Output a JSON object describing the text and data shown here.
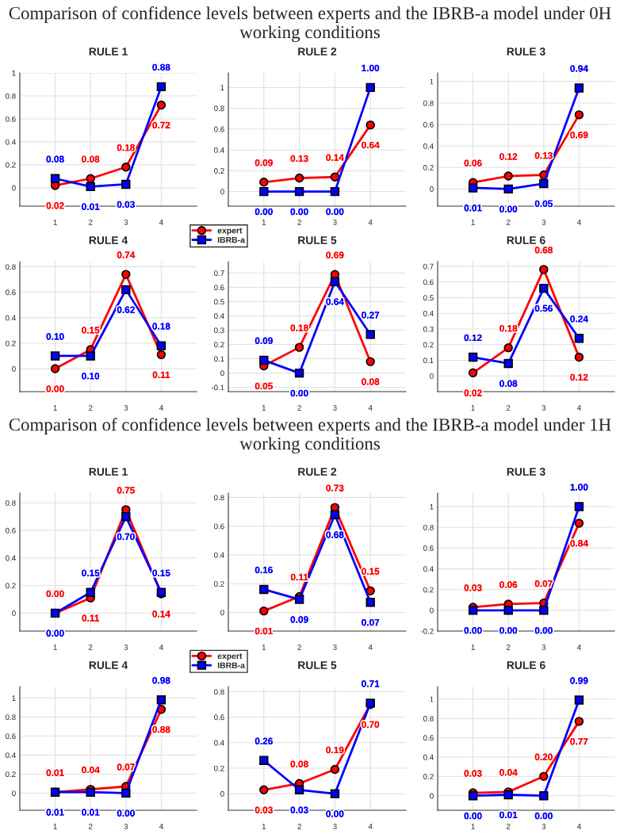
{
  "chart_data": [
    {
      "type": "line",
      "subtitle": "Comparison of confidence levels between experts and the IBRB-a model under 0H working conditions",
      "title": "RULE 1",
      "x": [
        1,
        2,
        3,
        4
      ],
      "xlim": [
        0,
        5
      ],
      "xticks": [
        1,
        2,
        3,
        4
      ],
      "ylim": [
        -0.16,
        1
      ],
      "yticks": [
        0,
        0.2,
        0.4,
        0.6,
        0.8,
        1
      ],
      "grid": true,
      "legend": "bottom right",
      "series": [
        {
          "name": "expert",
          "color": "#ff0000",
          "marker": "circle",
          "values": [
            0.02,
            0.08,
            0.18,
            0.72
          ],
          "value_labels": [
            "0.02",
            "0.08",
            "0.18",
            "0.72"
          ]
        },
        {
          "name": "IBRB-a",
          "color": "#0000ff",
          "marker": "square",
          "values": [
            0.08,
            0.01,
            0.03,
            0.88
          ],
          "value_labels": [
            "0.08",
            "0.01",
            "0.03",
            "0.88"
          ]
        }
      ]
    },
    {
      "type": "line",
      "title": "RULE 2",
      "x": [
        1,
        2,
        3,
        4
      ],
      "xlim": [
        0,
        5
      ],
      "xticks": [
        1,
        2,
        3,
        4
      ],
      "ylim": [
        -0.14,
        1.14
      ],
      "yticks": [
        0,
        0.2,
        0.4,
        0.6,
        0.8,
        1
      ],
      "grid": true,
      "series": [
        {
          "color": "#ff0000",
          "marker": "circle",
          "values": [
            0.09,
            0.13,
            0.14,
            0.64
          ],
          "value_labels": [
            "0.09",
            "0.13",
            "0.14",
            "0.64"
          ]
        },
        {
          "color": "#0000ff",
          "marker": "square",
          "values": [
            0.0,
            0.0,
            0.0,
            1.0
          ],
          "value_labels": [
            "0.00",
            "0.00",
            "0.00",
            "1.00"
          ]
        }
      ]
    },
    {
      "type": "line",
      "title": "RULE 3",
      "x": [
        1,
        2,
        3,
        4
      ],
      "xlim": [
        0,
        5
      ],
      "xticks": [
        1,
        2,
        3,
        4
      ],
      "ylim": [
        -0.16,
        1.08
      ],
      "yticks": [
        0,
        0.2,
        0.4,
        0.6,
        0.8,
        1
      ],
      "grid": true,
      "series": [
        {
          "color": "#ff0000",
          "marker": "circle",
          "values": [
            0.06,
            0.12,
            0.13,
            0.69
          ],
          "value_labels": [
            "0.06",
            "0.12",
            "0.13",
            "0.69"
          ]
        },
        {
          "color": "#0000ff",
          "marker": "square",
          "values": [
            0.01,
            0.0,
            0.05,
            0.94
          ],
          "value_labels": [
            "0.01",
            "0.00",
            "0.05",
            "0.94"
          ]
        }
      ]
    },
    {
      "type": "line",
      "title": "RULE 4",
      "x": [
        1,
        2,
        3,
        4
      ],
      "xlim": [
        0,
        5
      ],
      "xticks": [
        1,
        2,
        3,
        4
      ],
      "ylim": [
        -0.18,
        0.84
      ],
      "yticks": [
        0,
        0.2,
        0.4,
        0.6,
        0.8
      ],
      "grid": true,
      "series": [
        {
          "color": "#ff0000",
          "marker": "circle",
          "values": [
            0.0,
            0.15,
            0.74,
            0.11
          ],
          "value_labels": [
            "0.00",
            "0.15",
            "0.74",
            "0.11"
          ]
        },
        {
          "color": "#0000ff",
          "marker": "square",
          "values": [
            0.1,
            0.1,
            0.62,
            0.18
          ],
          "value_labels": [
            "0.10",
            "0.10",
            "0.62",
            "0.18"
          ]
        }
      ]
    },
    {
      "type": "line",
      "title": "RULE 5",
      "x": [
        1,
        2,
        3,
        4
      ],
      "xlim": [
        0,
        5
      ],
      "xticks": [
        1,
        2,
        3,
        4
      ],
      "ylim": [
        -0.13,
        0.78
      ],
      "yticks": [
        -0.1,
        0,
        0.1,
        0.2,
        0.3,
        0.4,
        0.5,
        0.6,
        0.7
      ],
      "grid": true,
      "series": [
        {
          "color": "#ff0000",
          "marker": "circle",
          "values": [
            0.05,
            0.18,
            0.69,
            0.08
          ],
          "value_labels": [
            "0.05",
            "0.18",
            "0.69",
            "0.08"
          ]
        },
        {
          "color": "#0000ff",
          "marker": "square",
          "values": [
            0.09,
            0.0,
            0.64,
            0.27
          ],
          "value_labels": [
            "0.09",
            "0.00",
            "0.64",
            "0.27"
          ]
        }
      ]
    },
    {
      "type": "line",
      "title": "RULE 6",
      "x": [
        1,
        2,
        3,
        4
      ],
      "xlim": [
        0,
        5
      ],
      "xticks": [
        1,
        2,
        3,
        4
      ],
      "ylim": [
        -0.1,
        0.73
      ],
      "yticks": [
        0,
        0.1,
        0.2,
        0.3,
        0.4,
        0.5,
        0.6,
        0.7
      ],
      "grid": true,
      "series": [
        {
          "color": "#ff0000",
          "marker": "circle",
          "values": [
            0.02,
            0.18,
            0.68,
            0.12
          ],
          "value_labels": [
            "0.02",
            "0.18",
            "0.68",
            "0.12"
          ]
        },
        {
          "color": "#0000ff",
          "marker": "square",
          "values": [
            0.12,
            0.08,
            0.56,
            0.24
          ],
          "value_labels": [
            "0.12",
            "0.08",
            "0.56",
            "0.24"
          ]
        }
      ]
    },
    {
      "type": "line",
      "subtitle": "Comparison of confidence levels between experts and the IBRB-a model under 1H working conditions",
      "title": "RULE 1",
      "x": [
        1,
        2,
        3,
        4
      ],
      "xlim": [
        0,
        5
      ],
      "xticks": [
        1,
        2,
        3,
        4
      ],
      "ylim": [
        -0.13,
        0.87
      ],
      "yticks": [
        0,
        0.2,
        0.4,
        0.6,
        0.8
      ],
      "grid": true,
      "legend": "bottom right",
      "series": [
        {
          "name": "expert",
          "color": "#ff0000",
          "marker": "circle",
          "values": [
            0.0,
            0.11,
            0.75,
            0.14
          ],
          "value_labels": [
            "0.00",
            "0.11",
            "0.75",
            "0.14"
          ]
        },
        {
          "name": "IBRB-a",
          "color": "#0000ff",
          "marker": "square",
          "values": [
            0.0,
            0.15,
            0.7,
            0.15
          ],
          "value_labels": [
            "0.00",
            "0.15",
            "0.70",
            "0.15"
          ]
        }
      ]
    },
    {
      "type": "line",
      "title": "RULE 2",
      "x": [
        1,
        2,
        3,
        4
      ],
      "xlim": [
        0,
        5
      ],
      "xticks": [
        1,
        2,
        3,
        4
      ],
      "ylim": [
        -0.13,
        0.83
      ],
      "yticks": [
        0,
        0.2,
        0.4,
        0.6,
        0.8
      ],
      "grid": true,
      "series": [
        {
          "color": "#ff0000",
          "marker": "circle",
          "values": [
            0.01,
            0.11,
            0.73,
            0.15
          ],
          "value_labels": [
            "0.01",
            "0.11",
            "0.73",
            "0.15"
          ]
        },
        {
          "color": "#0000ff",
          "marker": "square",
          "values": [
            0.16,
            0.09,
            0.68,
            0.07
          ],
          "value_labels": [
            "0.16",
            "0.09",
            "0.68",
            "0.07"
          ]
        }
      ]
    },
    {
      "type": "line",
      "title": "RULE 3",
      "x": [
        1,
        2,
        3,
        4
      ],
      "xlim": [
        0,
        5
      ],
      "xticks": [
        1,
        2,
        3,
        4
      ],
      "ylim": [
        -0.2,
        1.13
      ],
      "yticks": [
        -0.2,
        0,
        0.2,
        0.4,
        0.6,
        0.8,
        1
      ],
      "grid": true,
      "series": [
        {
          "color": "#ff0000",
          "marker": "circle",
          "values": [
            0.03,
            0.06,
            0.07,
            0.84
          ],
          "value_labels": [
            "0.03",
            "0.06",
            "0.07",
            "0.84"
          ]
        },
        {
          "color": "#0000ff",
          "marker": "square",
          "values": [
            0.0,
            0.0,
            0.0,
            1.0
          ],
          "value_labels": [
            "0.00",
            "0.00",
            "0.00",
            "1.00"
          ]
        }
      ]
    },
    {
      "type": "line",
      "title": "RULE 4",
      "x": [
        1,
        2,
        3,
        4
      ],
      "xlim": [
        0,
        5
      ],
      "xticks": [
        1,
        2,
        3,
        4
      ],
      "ylim": [
        -0.18,
        1.12
      ],
      "yticks": [
        0,
        0.2,
        0.4,
        0.6,
        0.8,
        1
      ],
      "grid": true,
      "series": [
        {
          "color": "#ff0000",
          "marker": "circle",
          "values": [
            0.01,
            0.04,
            0.07,
            0.88
          ],
          "value_labels": [
            "0.01",
            "0.04",
            "0.07",
            "0.88"
          ]
        },
        {
          "color": "#0000ff",
          "marker": "square",
          "values": [
            0.01,
            0.01,
            0.0,
            0.98
          ],
          "value_labels": [
            "0.01",
            "0.01",
            "0.00",
            "0.98"
          ]
        }
      ]
    },
    {
      "type": "line",
      "title": "RULE 5",
      "x": [
        1,
        2,
        3,
        4
      ],
      "xlim": [
        0,
        5
      ],
      "xticks": [
        1,
        2,
        3,
        4
      ],
      "ylim": [
        -0.13,
        0.84
      ],
      "yticks": [
        0,
        0.2,
        0.4,
        0.6,
        0.8
      ],
      "grid": true,
      "series": [
        {
          "color": "#ff0000",
          "marker": "circle",
          "values": [
            0.03,
            0.08,
            0.19,
            0.7
          ],
          "value_labels": [
            "0.03",
            "0.08",
            "0.19",
            "0.70"
          ]
        },
        {
          "color": "#0000ff",
          "marker": "square",
          "values": [
            0.26,
            0.03,
            0.0,
            0.71
          ],
          "value_labels": [
            "0.26",
            "0.03",
            "0.00",
            "0.71"
          ]
        }
      ]
    },
    {
      "type": "line",
      "title": "RULE 6",
      "x": [
        1,
        2,
        3,
        4
      ],
      "xlim": [
        0,
        5
      ],
      "xticks": [
        1,
        2,
        3,
        4
      ],
      "ylim": [
        -0.15,
        1.13
      ],
      "yticks": [
        0,
        0.2,
        0.4,
        0.6,
        0.8,
        1
      ],
      "grid": true,
      "series": [
        {
          "color": "#ff0000",
          "marker": "circle",
          "values": [
            0.03,
            0.04,
            0.2,
            0.77
          ],
          "value_labels": [
            "0.03",
            "0.04",
            "0.20",
            "0.77"
          ]
        },
        {
          "color": "#0000ff",
          "marker": "square",
          "values": [
            0.0,
            0.01,
            0.0,
            0.99
          ],
          "value_labels": [
            "0.00",
            "0.01",
            "0.00",
            "0.99"
          ]
        }
      ]
    }
  ]
}
